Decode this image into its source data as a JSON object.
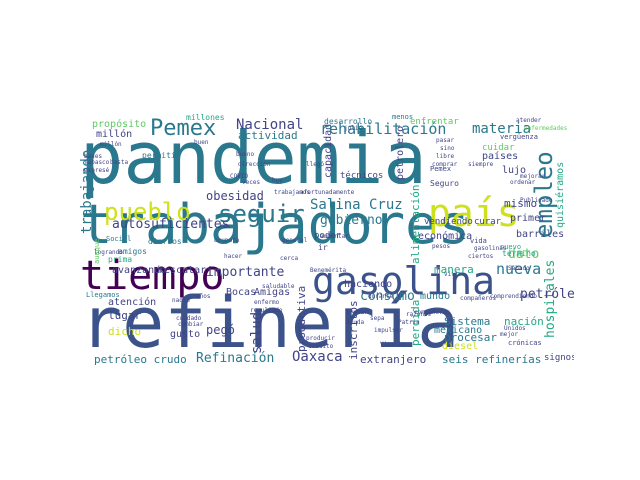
{
  "palette": {
    "teal": "#2a788e",
    "blue": "#3b528b",
    "navy": "#414487",
    "purple": "#440154",
    "green": "#5ec962",
    "lime": "#cde11d",
    "mint": "#22a884"
  },
  "words": [
    "pandemia",
    "trabajadores",
    "refinería",
    "tiempo",
    "gasolina",
    "país",
    "pueblo",
    "seguir",
    "Pemex",
    "empleo",
    "rehabilitación",
    "materia",
    "Salina Cruz",
    "nueva",
    "consumo",
    "Oaxaca",
    "Nacional",
    "obesidad",
    "gobierno",
    "autosuficientes",
    "importante",
    "petróleo",
    "Refinación",
    "salud",
    "petróleo crudo",
    "seis refinerías",
    "mismo",
    "dato",
    "hospitales",
    "trabajando",
    "Bocas",
    "Amigas",
    "productiva",
    "inscritos",
    "extranjero",
    "procesar",
    "Sistema",
    "mexicano",
    "nación",
    "mundo",
    "manera",
    "actividad",
    "propósito",
    "millón",
    "técnicos",
    "países",
    "lujo",
    "cuidar",
    "vendiendo",
    "curar",
    "haciendo",
    "avanzando",
    "rescatar",
    "atención",
    "lugar",
    "dicho",
    "gusto",
    "pegó",
    "poder",
    "económica",
    "primer",
    "barriles",
    "alimentación",
    "perdida",
    "diesel",
    "signos",
    "desarrollo",
    "menos",
    "enfrentar",
    "millones",
    "amigos",
    "diarios",
    "permitir",
    "Social",
    "prima",
    "aunque",
    "Llegamos",
    "nuevo",
    "vida",
    "término",
    "capacidad",
    "petrolero",
    "mejorar",
    "crónicas",
    "quisiéramos",
    "vergüenza",
    "atender",
    "enfermedades",
    "Publicado",
    "Sábado",
    "Seguro",
    "Pemex",
    "COVID",
    "bases",
    "frenar",
    "trabajamos",
    "afortunadamente",
    "ocupara",
    "pesos",
    "gasolinas",
    "producir",
    "crédito",
    "deuda",
    "sepa",
    "impulsar",
    "Vicario",
    "comprar",
    "general",
    "mes",
    "enfermo",
    "resultado",
    "llegó",
    "millón",
    "nadie",
    "años",
    "cambiar",
    "cuidado",
    "logrando",
    "Unidos",
    "mejor",
    "veces",
    "razones",
    "dirección",
    "siempre",
    "hoy",
    "Tabasco",
    "expresé",
    "libre",
    "aumentar",
    "ir",
    "cerca",
    "Benemérita",
    "comprendiendo",
    "compañeras",
    "compañeros",
    "ciertos",
    "vivir",
    "julio",
    "buen",
    "bueno",
    "basta",
    "durante",
    "ordenar",
    "hacer",
    "saludable",
    "Patria",
    "sino",
    "pasar"
  ]
}
